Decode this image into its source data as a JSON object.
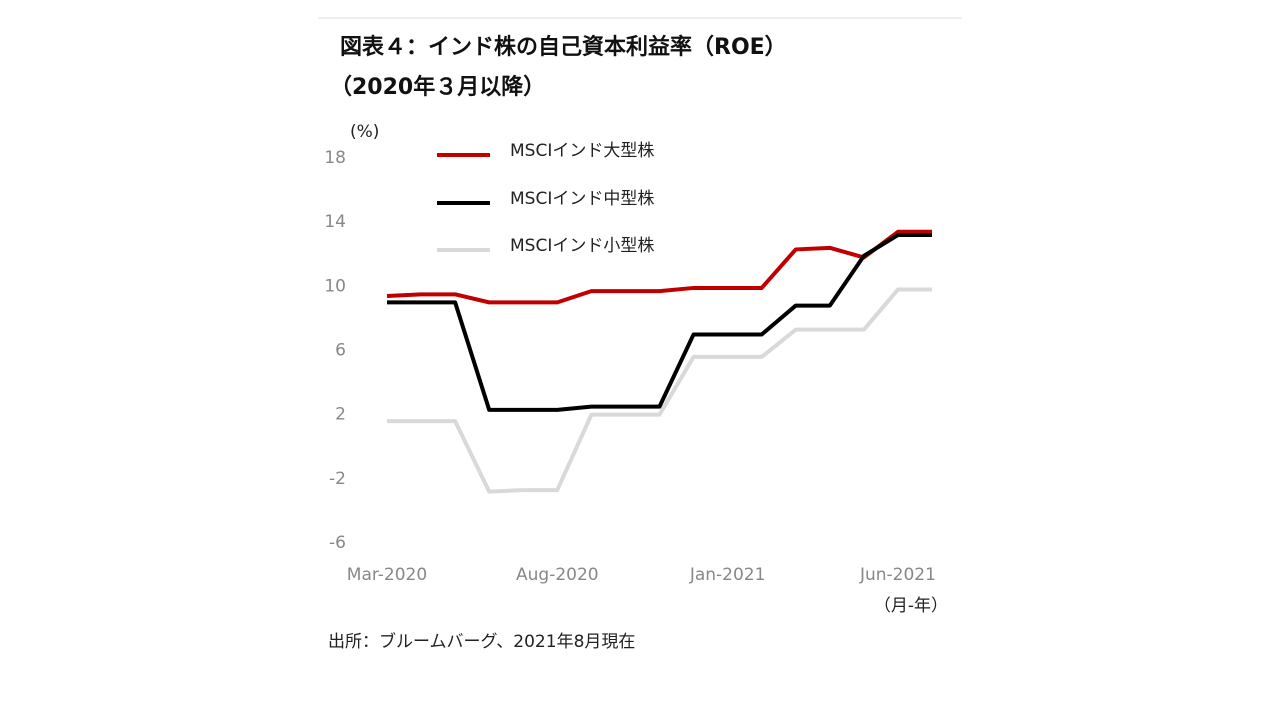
{
  "chart_data": {
    "type": "line",
    "title": "図表４：インド株の自己資本利益率（ROE）",
    "subtitle": "（2020年３月以降）",
    "y_label": "(%)",
    "x_label": "（月-年）",
    "source": "出所：ブルームバーグ、2021年8月現在",
    "categories": [
      "Mar-2020",
      null,
      null,
      null,
      null,
      "Aug-2020",
      null,
      null,
      null,
      null,
      "Jan-2021",
      null,
      null,
      null,
      null,
      "Jun-2021",
      null
    ],
    "series": [
      {
        "name": "MSCIインド大型株",
        "color": "#c00000",
        "values": [
          9.4,
          9.5,
          9.5,
          9.0,
          9.0,
          9.0,
          9.7,
          9.7,
          9.7,
          9.9,
          9.9,
          9.9,
          12.3,
          12.4,
          11.8,
          13.4,
          13.4
        ]
      },
      {
        "name": "MSCIインド中型株",
        "color": "#000000",
        "values": [
          9.0,
          9.0,
          9.0,
          2.3,
          2.3,
          2.3,
          2.5,
          2.5,
          2.5,
          7.0,
          7.0,
          7.0,
          8.8,
          8.8,
          11.9,
          13.2,
          13.2
        ]
      },
      {
        "name": "MSCIインド小型株",
        "color": "#d9d9d9",
        "values": [
          1.6,
          1.6,
          1.6,
          -2.8,
          -2.7,
          -2.7,
          2.0,
          2.0,
          2.0,
          5.6,
          5.6,
          5.6,
          7.3,
          7.3,
          7.3,
          9.8,
          9.8
        ]
      }
    ],
    "ylim": [
      -6,
      18
    ],
    "yticks": [
      -6,
      -2,
      2,
      6,
      10,
      14,
      18
    ],
    "grid": false
  }
}
